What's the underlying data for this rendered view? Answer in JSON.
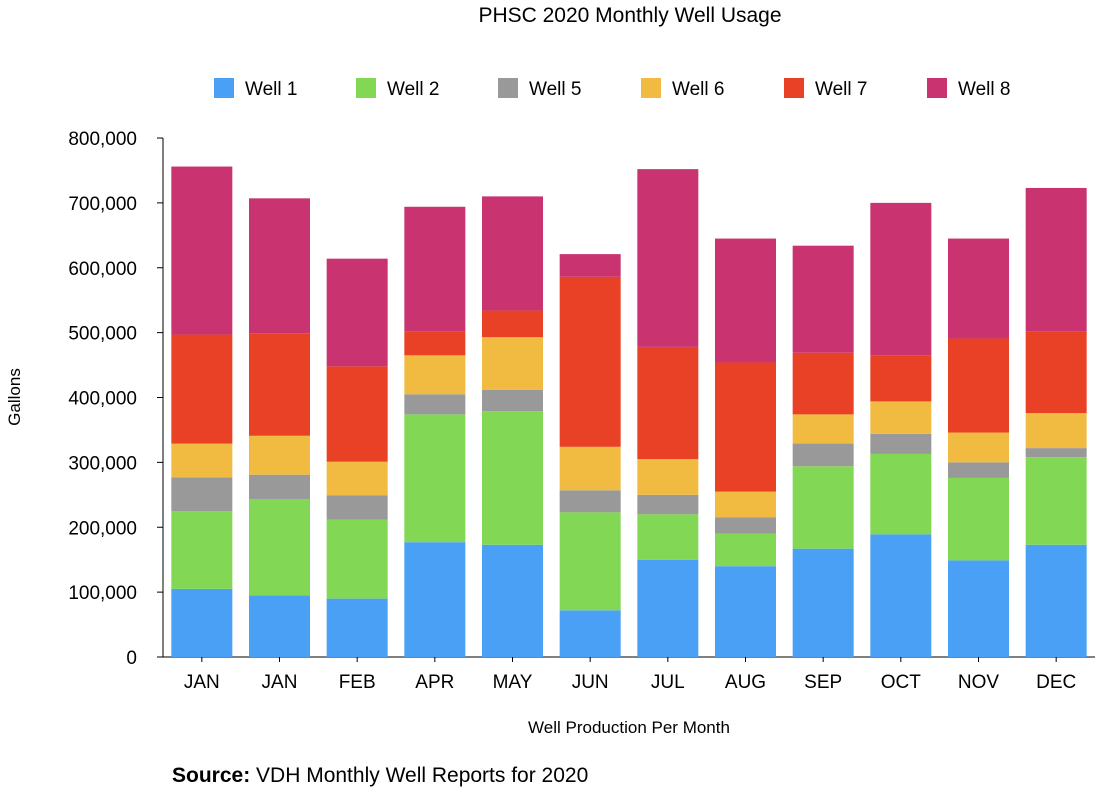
{
  "chart_data": {
    "type": "bar",
    "stacked": true,
    "title": "PHSC 2020 Monthly Well Usage",
    "xlabel": "Well Production Per Month",
    "ylabel": "Gallons",
    "ylim": [
      0,
      800000
    ],
    "yticks": [
      0,
      100000,
      200000,
      300000,
      400000,
      500000,
      600000,
      700000,
      800000
    ],
    "ytick_labels": [
      "0",
      "100,000",
      "200,000",
      "300,000",
      "400,000",
      "500,000",
      "600,000",
      "700,000",
      "800,000"
    ],
    "categories": [
      "JAN",
      "JAN",
      "FEB",
      "APR",
      "MAY",
      "JUN",
      "JUL",
      "AUG",
      "SEP",
      "OCT",
      "NOV",
      "DEC"
    ],
    "legend_position": "top",
    "grid": false,
    "series": [
      {
        "name": "Well 1",
        "color": "#4aa0f5",
        "values": [
          105000,
          95000,
          90000,
          177000,
          173000,
          72000,
          150000,
          140000,
          167000,
          189000,
          149000,
          173000
        ]
      },
      {
        "name": "Well 2",
        "color": "#82d855",
        "values": [
          120000,
          148000,
          122000,
          197000,
          206000,
          151000,
          70000,
          50000,
          127000,
          124000,
          127000,
          135000
        ]
      },
      {
        "name": "Well 5",
        "color": "#999999",
        "values": [
          52000,
          38000,
          37000,
          31000,
          33000,
          34000,
          30000,
          25000,
          35000,
          31000,
          24000,
          14000
        ]
      },
      {
        "name": "Well 6",
        "color": "#f0bb40",
        "values": [
          52000,
          60000,
          52000,
          60000,
          81000,
          67000,
          55000,
          40000,
          45000,
          50000,
          46000,
          54000
        ]
      },
      {
        "name": "Well 7",
        "color": "#e84126",
        "values": [
          168000,
          158000,
          147000,
          37000,
          41000,
          262000,
          173000,
          199000,
          95000,
          71000,
          145000,
          126000
        ]
      },
      {
        "name": "Well 8",
        "color": "#c83370",
        "values": [
          259000,
          208000,
          166000,
          192000,
          176000,
          35000,
          274000,
          191000,
          165000,
          235000,
          154000,
          221000
        ]
      }
    ]
  },
  "source": {
    "label": "Source:",
    "text": "VDH Monthly Well Reports for 2020"
  }
}
